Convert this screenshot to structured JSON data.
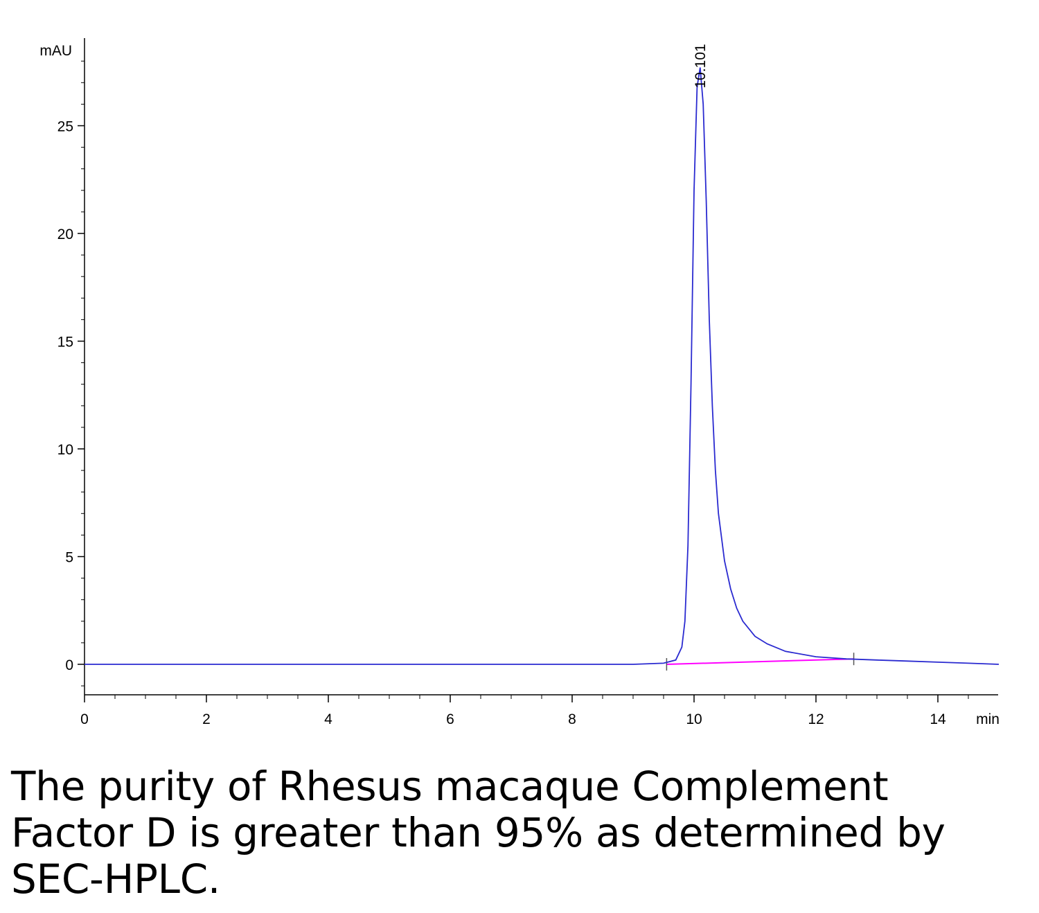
{
  "chart_data": {
    "type": "line",
    "ylabel": "mAU",
    "xlabel": "min",
    "xlim": [
      0,
      15
    ],
    "ylim": [
      -1.4,
      29
    ],
    "x_ticks": [
      0,
      2,
      4,
      6,
      8,
      10,
      12,
      14
    ],
    "y_ticks": [
      0,
      5,
      10,
      15,
      20,
      25
    ],
    "grid": false,
    "series": [
      {
        "color": "#2a2ad0",
        "x": [
          0,
          2,
          4,
          6,
          8,
          9,
          9.5,
          9.7,
          9.8,
          9.85,
          9.9,
          9.95,
          10.0,
          10.05,
          10.1,
          10.15,
          10.2,
          10.25,
          10.3,
          10.35,
          10.4,
          10.5,
          10.6,
          10.7,
          10.8,
          11.0,
          11.2,
          11.5,
          12.0,
          12.5,
          13.0,
          13.5,
          14.0,
          14.5,
          15.0
        ],
        "y": [
          0,
          0,
          0,
          0,
          0,
          0,
          0.05,
          0.2,
          0.8,
          2.0,
          5.5,
          13.0,
          22.0,
          26.8,
          27.7,
          26.0,
          21.5,
          16.0,
          12.0,
          9.0,
          7.0,
          4.8,
          3.5,
          2.6,
          2.0,
          1.3,
          0.95,
          0.6,
          0.35,
          0.25,
          0.2,
          0.15,
          0.1,
          0.05,
          0.0
        ]
      }
    ],
    "peak_label": {
      "x": 10.101,
      "y": 27.7,
      "text": "10.101"
    },
    "baseline": {
      "color": "#ff00ff",
      "x": [
        9.55,
        12.62
      ],
      "y": [
        0.0,
        0.25
      ]
    }
  },
  "caption": "The purity of Rhesus macaque Complement Factor D is greater than 95% as determined by SEC-HPLC."
}
